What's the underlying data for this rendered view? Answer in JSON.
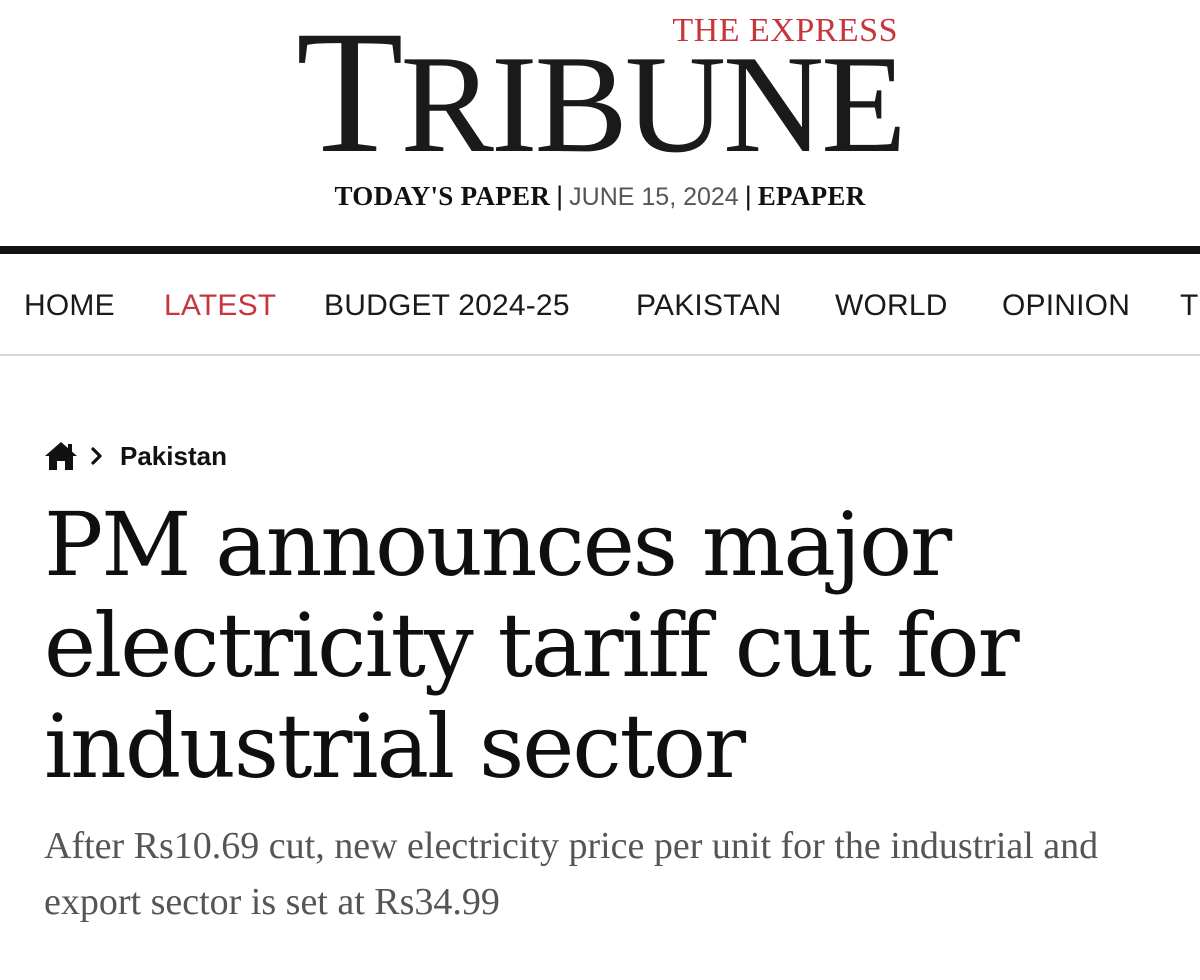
{
  "masthead": {
    "logo_small": "THE EXPRESS",
    "logo_main_cap_t": "T",
    "logo_main_rest": "RIBUNE",
    "todays_paper": "TODAY'S PAPER",
    "separator": "|",
    "date": "JUNE 15, 2024",
    "epaper": "EPAPER"
  },
  "nav": {
    "items": [
      {
        "label": "HOME"
      },
      {
        "label": "LATEST"
      },
      {
        "label": "BUDGET 2024-25"
      },
      {
        "label": "PAKISTAN"
      },
      {
        "label": "WORLD"
      },
      {
        "label": "OPINION"
      },
      {
        "label": "T"
      }
    ],
    "active_color": "#c8363d"
  },
  "breadcrumb": {
    "home_icon": "home-icon",
    "chevron_icon": "chevron-right-icon",
    "section": "Pakistan"
  },
  "article": {
    "headline": "PM announces major electricity tariff cut for industrial sector",
    "subheadline": "After Rs10.69 cut, new electricity price per unit for the industrial and export sector is set at Rs34.99"
  }
}
